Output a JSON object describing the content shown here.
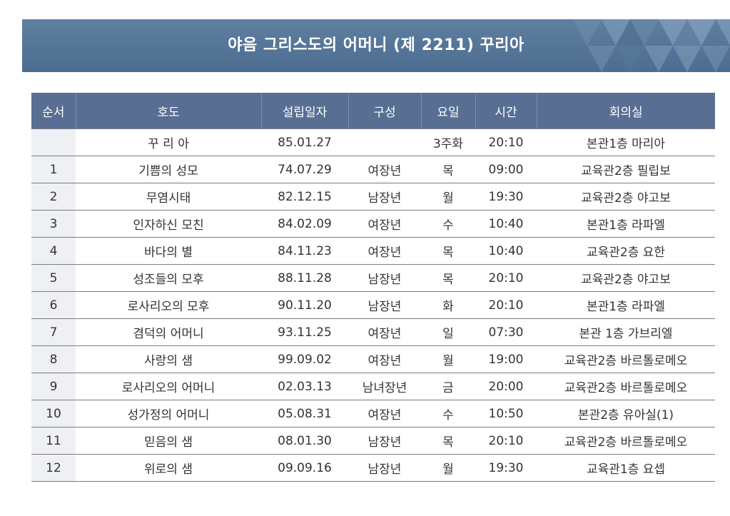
{
  "title": "야음 그리스도의 어머니 (제 2211) 꾸리아",
  "colors": {
    "banner": "#5a7a9c",
    "header": "#586f93"
  },
  "table": {
    "headers": [
      "순서",
      "호도",
      "설립일자",
      "구성",
      "요일",
      "시간",
      "회의실"
    ],
    "rows": [
      [
        "",
        "꾸 리 아",
        "85.01.27",
        "",
        "3주화",
        "20:10",
        "본관1층 마리아"
      ],
      [
        "1",
        "기쁨의 성모",
        "74.07.29",
        "여장년",
        "목",
        "09:00",
        "교육관2층 필립보"
      ],
      [
        "2",
        "무염시태",
        "82.12.15",
        "남장년",
        "월",
        "19:30",
        "교육관2층 야고보"
      ],
      [
        "3",
        "인자하신 모친",
        "84.02.09",
        "여장년",
        "수",
        "10:40",
        "본관1층 라파엘"
      ],
      [
        "4",
        "바다의 별",
        "84.11.23",
        "여장년",
        "목",
        "10:40",
        "교육관2층 요한"
      ],
      [
        "5",
        "성조들의 모후",
        "88.11.28",
        "남장년",
        "목",
        "20:10",
        "교육관2층 야고보"
      ],
      [
        "6",
        "로사리오의 모후",
        "90.11.20",
        "남장년",
        "화",
        "20:10",
        "본관1층 라파엘"
      ],
      [
        "7",
        "겸덕의 어머니",
        "93.11.25",
        "여장년",
        "일",
        "07:30",
        "본관 1층 가브리엘"
      ],
      [
        "8",
        "사랑의 샘",
        "99.09.02",
        "여장년",
        "월",
        "19:00",
        "교육관2층 바르톨로메오"
      ],
      [
        "9",
        "로사리오의 어머니",
        "02.03.13",
        "남녀장년",
        "금",
        "20:00",
        "교육관2층 바르톨로메오"
      ],
      [
        "10",
        "성가정의 어머니",
        "05.08.31",
        "여장년",
        "수",
        "10:50",
        "본관2층 유아실(1)"
      ],
      [
        "11",
        "믿음의 샘",
        "08.01.30",
        "남장년",
        "목",
        "20:10",
        "교육관2층 바르톨로메오"
      ],
      [
        "12",
        "위로의 샘",
        "09.09.16",
        "남장년",
        "월",
        "19:30",
        "교육관1층 요셉"
      ]
    ]
  }
}
